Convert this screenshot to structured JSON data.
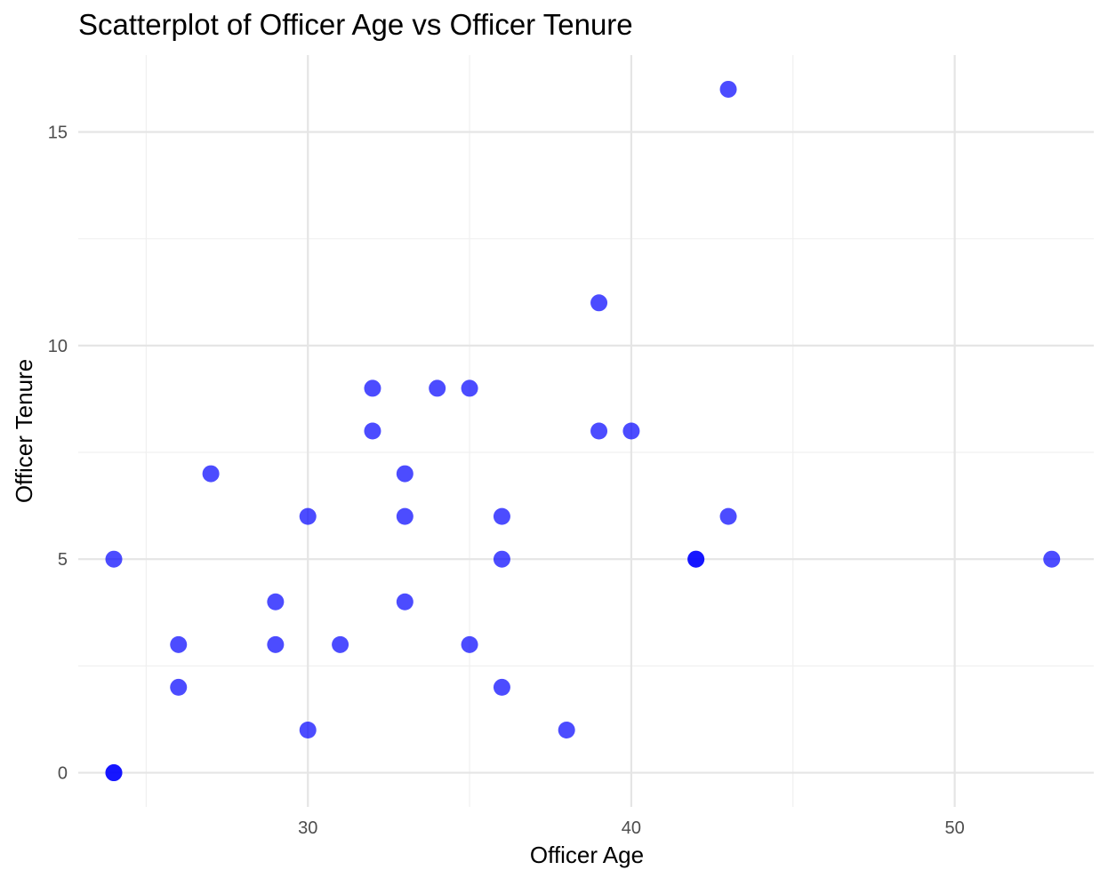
{
  "chart_data": {
    "type": "scatter",
    "title": "Scatterplot of Officer Age vs Officer Tenure",
    "xlabel": "Officer Age",
    "ylabel": "Officer Tenure",
    "xlim": [
      22.9,
      54.3
    ],
    "ylim": [
      -0.8,
      16.8
    ],
    "x_ticks": [
      30,
      40,
      50
    ],
    "x_minor_ticks": [
      25,
      35,
      45
    ],
    "y_ticks": [
      0,
      5,
      10,
      15
    ],
    "y_minor_ticks": [
      2.5,
      7.5,
      12.5
    ],
    "grid": true,
    "legend": "none",
    "point_color": "#0000FF",
    "point_alpha": 0.7,
    "points": [
      {
        "x": 24,
        "y": 5
      },
      {
        "x": 24,
        "y": 0
      },
      {
        "x": 24,
        "y": 0
      },
      {
        "x": 26,
        "y": 3
      },
      {
        "x": 26,
        "y": 2
      },
      {
        "x": 27,
        "y": 7
      },
      {
        "x": 29,
        "y": 4
      },
      {
        "x": 29,
        "y": 3
      },
      {
        "x": 30,
        "y": 6
      },
      {
        "x": 30,
        "y": 1
      },
      {
        "x": 31,
        "y": 3
      },
      {
        "x": 32,
        "y": 9
      },
      {
        "x": 32,
        "y": 8
      },
      {
        "x": 33,
        "y": 7
      },
      {
        "x": 33,
        "y": 6
      },
      {
        "x": 33,
        "y": 4
      },
      {
        "x": 34,
        "y": 9
      },
      {
        "x": 35,
        "y": 9
      },
      {
        "x": 35,
        "y": 3
      },
      {
        "x": 36,
        "y": 6
      },
      {
        "x": 36,
        "y": 5
      },
      {
        "x": 36,
        "y": 2
      },
      {
        "x": 38,
        "y": 1
      },
      {
        "x": 39,
        "y": 11
      },
      {
        "x": 39,
        "y": 8
      },
      {
        "x": 40,
        "y": 8
      },
      {
        "x": 42,
        "y": 5
      },
      {
        "x": 42,
        "y": 5
      },
      {
        "x": 43,
        "y": 16
      },
      {
        "x": 43,
        "y": 6
      },
      {
        "x": 53,
        "y": 5
      }
    ]
  }
}
